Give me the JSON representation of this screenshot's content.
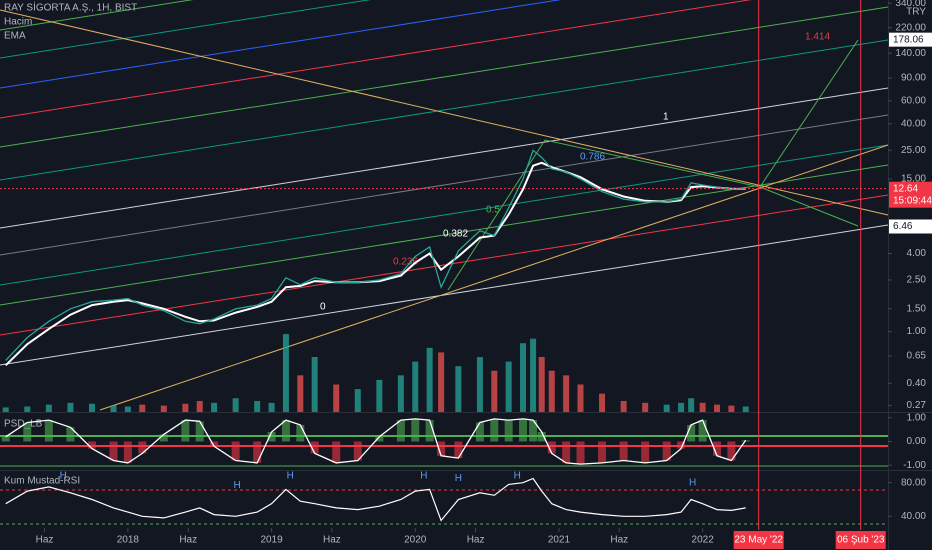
{
  "chart_data": [
    {
      "type": "line",
      "title": "RAY SİGORTA A.Ş., 1H, BIST",
      "currency": "TRY",
      "scale": "log",
      "color": "#26a69a",
      "x": [
        2017.15,
        2017.3,
        2017.45,
        2017.6,
        2017.75,
        2017.9,
        2018.0,
        2018.1,
        2018.25,
        2018.4,
        2018.5,
        2018.6,
        2018.75,
        2018.9,
        2019.0,
        2019.1,
        2019.2,
        2019.3,
        2019.45,
        2019.6,
        2019.75,
        2019.9,
        2020.0,
        2020.1,
        2020.18,
        2020.3,
        2020.45,
        2020.55,
        2020.65,
        2020.75,
        2020.82,
        2020.88,
        2020.95,
        2021.05,
        2021.15,
        2021.3,
        2021.45,
        2021.6,
        2021.75,
        2021.85,
        2021.92,
        2022.0,
        2022.1,
        2022.2,
        2022.3
      ],
      "values": [
        0.6,
        0.9,
        1.2,
        1.5,
        1.7,
        1.75,
        1.8,
        1.6,
        1.45,
        1.2,
        1.15,
        1.25,
        1.5,
        1.6,
        1.8,
        2.6,
        2.3,
        2.6,
        2.4,
        2.4,
        2.5,
        2.8,
        3.8,
        4.5,
        2.2,
        4.2,
        6.0,
        5.5,
        9,
        15,
        25,
        22,
        18,
        17,
        15,
        12,
        10.5,
        10,
        10,
        10.5,
        14,
        13.5,
        13,
        12.5,
        12.64
      ],
      "series": [
        {
          "name": "EMA",
          "color": "#ffffff",
          "values": [
            0.55,
            0.8,
            1.05,
            1.35,
            1.6,
            1.7,
            1.75,
            1.65,
            1.5,
            1.3,
            1.2,
            1.22,
            1.4,
            1.55,
            1.7,
            2.2,
            2.25,
            2.45,
            2.4,
            2.4,
            2.45,
            2.7,
            3.4,
            4.0,
            3.0,
            3.8,
            5.3,
            5.5,
            8,
            12.5,
            19,
            20,
            18.5,
            17,
            15.5,
            12.5,
            11,
            10.2,
            10,
            10.3,
            13,
            13.2,
            12.9,
            12.6,
            12.6
          ]
        }
      ],
      "volume": {
        "name": "Hacim",
        "vlim": [
          0,
          120
        ],
        "values": [
          5,
          6,
          8,
          10,
          9,
          7,
          6,
          8,
          7,
          9,
          12,
          10,
          15,
          12,
          10,
          85,
          40,
          60,
          30,
          25,
          35,
          40,
          55,
          70,
          65,
          50,
          60,
          45,
          55,
          75,
          80,
          60,
          45,
          40,
          30,
          20,
          12,
          10,
          8,
          10,
          15,
          10,
          8,
          7,
          6
        ]
      },
      "xlim": [
        2017.11,
        2023.29
      ],
      "ylim": [
        0.24,
        360
      ],
      "xticks": [
        {
          "value": 2017.42,
          "label": "Haz"
        },
        2018,
        {
          "value": 2018.42,
          "label": "Haz"
        },
        2019,
        {
          "value": 2019.42,
          "label": "Haz"
        },
        2020,
        {
          "value": 2020.42,
          "label": "Haz"
        },
        2021,
        {
          "value": 2021.42,
          "label": "Haz"
        },
        2022
      ],
      "yticks": [
        {
          "value": 340,
          "label": "340.00"
        },
        {
          "value": 220,
          "label": "220.00"
        },
        {
          "value": 140,
          "label": "140.00"
        },
        {
          "value": 90,
          "label": "90.00"
        },
        {
          "value": 60,
          "label": "60.00"
        },
        {
          "value": 40,
          "label": "40.00"
        },
        {
          "value": 25,
          "label": "25.00"
        },
        {
          "value": 15,
          "label": "15.00"
        },
        {
          "value": 4,
          "label": "4.00"
        },
        {
          "value": 2.5,
          "label": "2.50"
        },
        {
          "value": 1.5,
          "label": "1.50"
        },
        {
          "value": 1,
          "label": "1.00"
        },
        {
          "value": 0.65,
          "label": "0.65"
        },
        {
          "value": 0.4,
          "label": "0.40"
        },
        {
          "value": 0.27,
          "label": "0.27"
        }
      ],
      "vlines": [
        {
          "value": 2022.39,
          "label": "23 May '22"
        },
        {
          "value": 2023.1,
          "label": "06 Şub '23"
        }
      ],
      "price_labels": [
        {
          "value": 178.06,
          "color": "#ffffff"
        },
        {
          "value": 12.64,
          "color": "#f23645",
          "time": "15:09:44"
        },
        {
          "value": 6.46,
          "color": "#ffffff"
        }
      ],
      "fib_labels": [
        "1.414",
        "1",
        "0.786",
        "0.5",
        "0.382",
        "0.236",
        "0"
      ]
    },
    {
      "type": "oscillator",
      "title": "PSD_LB",
      "color": "#ffffff",
      "values": [
        0.2,
        0.8,
        0.9,
        0.6,
        -0.3,
        -0.8,
        -0.9,
        -0.5,
        0.3,
        0.9,
        0.85,
        -0.2,
        -0.8,
        -0.9,
        0.4,
        0.9,
        0.7,
        -0.5,
        -0.9,
        -0.8,
        0.2,
        0.9,
        0.95,
        0.9,
        -0.6,
        -0.7,
        0.8,
        0.95,
        0.9,
        0.95,
        0.9,
        0.4,
        -0.5,
        -0.9,
        -0.95,
        -0.9,
        -0.8,
        -0.9,
        -0.8,
        -0.3,
        0.7,
        0.9,
        -0.6,
        -0.8,
        0.05
      ],
      "ylim": [
        -1.2,
        1.2
      ],
      "yticks": [
        {
          "value": 1,
          "label": "1.00"
        },
        {
          "value": 0,
          "label": "0.00"
        },
        {
          "value": -1,
          "label": "-1.00"
        }
      ]
    },
    {
      "type": "line",
      "title": "Kum Mustad-RSI",
      "color": "#ffffff",
      "values": [
        55,
        70,
        75,
        68,
        60,
        50,
        45,
        40,
        38,
        45,
        50,
        42,
        40,
        45,
        55,
        72,
        58,
        55,
        50,
        48,
        52,
        60,
        70,
        72,
        35,
        60,
        68,
        65,
        78,
        80,
        85,
        70,
        55,
        48,
        45,
        42,
        40,
        40,
        42,
        45,
        60,
        55,
        48,
        47,
        50
      ],
      "ylim": [
        26,
        94
      ],
      "yticks": [
        {
          "value": 80,
          "label": "80.00"
        },
        {
          "value": 40,
          "label": "40.00"
        }
      ],
      "peaks": [
        {
          "text": "H",
          "x": 2017.55,
          "y": 88
        },
        {
          "text": "H",
          "x": 2018.76,
          "y": 77
        },
        {
          "text": "H",
          "x": 2019.13,
          "y": 88
        },
        {
          "text": "H",
          "x": 2020.06,
          "y": 88
        },
        {
          "text": "H",
          "x": 2020.3,
          "y": 85
        },
        {
          "text": "H",
          "x": 2020.71,
          "y": 88
        },
        {
          "text": "H",
          "x": 2021.93,
          "y": 80
        }
      ]
    }
  ]
}
